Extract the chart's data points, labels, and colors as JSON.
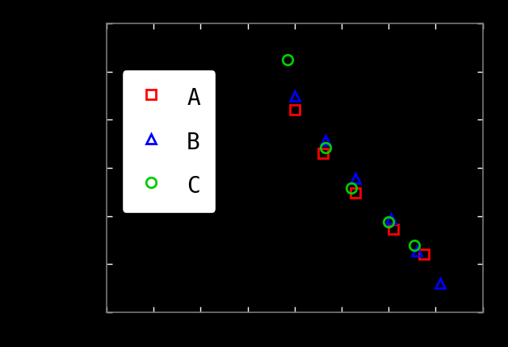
{
  "background_color": "#000000",
  "axes_facecolor": "#000000",
  "figure_facecolor": "#000000",
  "axes_edge_color": "#777777",
  "legend_facecolor": "#ffffff",
  "legend_edgecolor": "#000000",
  "legend_text_color": "#000000",
  "xlim": [
    0,
    8
  ],
  "ylim": [
    0,
    8
  ],
  "series_A": {
    "label": "A",
    "color": "#ff0000",
    "marker": "s",
    "x": [
      4.0,
      4.6,
      5.3,
      6.1,
      6.75
    ],
    "y": [
      5.6,
      4.4,
      3.3,
      2.3,
      1.6
    ]
  },
  "series_B": {
    "label": "B",
    "color": "#0000ff",
    "marker": "^",
    "x": [
      4.0,
      4.65,
      5.3,
      6.05,
      6.6,
      7.1
    ],
    "y": [
      6.0,
      4.75,
      3.7,
      2.6,
      1.7,
      0.8
    ]
  },
  "series_C": {
    "label": "C",
    "color": "#00cc00",
    "marker": "o",
    "x": [
      3.85,
      4.65,
      5.2,
      6.0,
      6.55
    ],
    "y": [
      7.0,
      4.55,
      3.45,
      2.5,
      1.85
    ]
  },
  "markersize": 9,
  "markeredgewidth": 2.0,
  "num_xticks": 9,
  "num_yticks": 7
}
